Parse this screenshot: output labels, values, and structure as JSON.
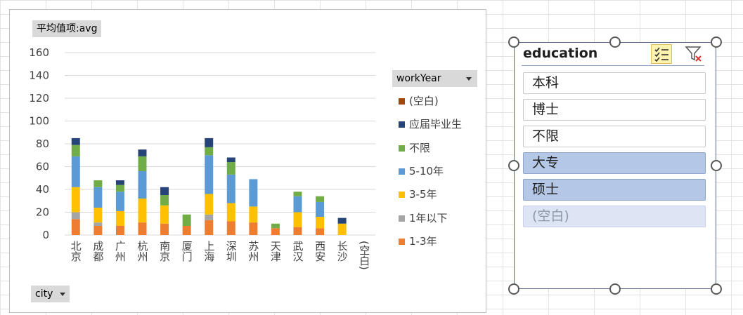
{
  "chart_data": {
    "type": "bar",
    "stacked": true,
    "filter_label": "平均值项:avg",
    "axis_field_label": "city",
    "legend_field_label": "workYear",
    "categories": [
      "北京",
      "成都",
      "广州",
      "杭州",
      "南京",
      "厦门",
      "上海",
      "深圳",
      "苏州",
      "天津",
      "武汉",
      "西安",
      "长沙",
      "(空白)"
    ],
    "ylim": [
      0,
      160
    ],
    "yticks": [
      0,
      20,
      40,
      60,
      80,
      100,
      120,
      140,
      160
    ],
    "grid": true,
    "legend_position": "right",
    "series": [
      {
        "name": "1-3年",
        "color": "#ed7d31",
        "values": [
          14,
          8,
          8,
          11,
          10,
          8,
          13,
          12,
          11,
          6,
          7,
          6,
          0,
          0
        ]
      },
      {
        "name": "1年以下",
        "color": "#a5a5a5",
        "values": [
          6,
          3,
          0,
          0,
          0,
          0,
          5,
          0,
          0,
          0,
          0,
          0,
          0,
          0
        ]
      },
      {
        "name": "3-5年",
        "color": "#ffc000",
        "values": [
          22,
          13,
          13,
          21,
          16,
          0,
          18,
          16,
          14,
          0,
          13,
          10,
          10,
          0
        ]
      },
      {
        "name": "5-10年",
        "color": "#5b9bd5",
        "values": [
          27,
          18,
          17,
          24,
          0,
          0,
          34,
          25,
          24,
          0,
          14,
          13,
          0,
          0
        ]
      },
      {
        "name": "不限",
        "color": "#70ad47",
        "values": [
          10,
          6,
          6,
          13,
          9,
          10,
          7,
          11,
          0,
          4,
          4,
          5,
          0,
          0
        ]
      },
      {
        "name": "应届毕业生",
        "color": "#264478",
        "values": [
          6,
          0,
          4,
          6,
          7,
          0,
          8,
          4,
          0,
          0,
          0,
          0,
          5,
          0
        ]
      },
      {
        "name": "(空白)",
        "color": "#9e480e",
        "values": [
          0,
          0,
          0,
          0,
          0,
          0,
          0,
          0,
          0,
          0,
          0,
          0,
          0,
          0
        ]
      }
    ],
    "legend_order": [
      "(空白)",
      "应届毕业生",
      "不限",
      "5-10年",
      "3-5年",
      "1年以下",
      "1-3年"
    ]
  },
  "slicer": {
    "title": "education",
    "multi_select_icon": "multi-select-icon",
    "clear_filter_icon": "clear-filter-icon",
    "items": [
      {
        "label": "本科",
        "state": "unselected"
      },
      {
        "label": "博士",
        "state": "unselected"
      },
      {
        "label": "不限",
        "state": "unselected"
      },
      {
        "label": "大专",
        "state": "selected"
      },
      {
        "label": "硕士",
        "state": "selected"
      },
      {
        "label": "(空白)",
        "state": "nodata"
      }
    ]
  }
}
